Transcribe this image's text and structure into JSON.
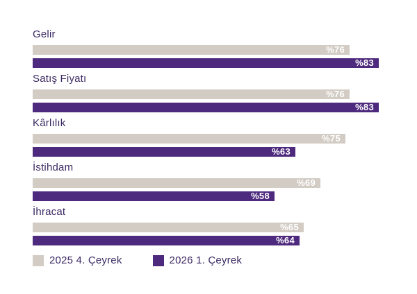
{
  "chart_data": {
    "type": "bar",
    "orientation": "horizontal",
    "title": "",
    "categories": [
      "Gelir",
      "Satış Fiyatı",
      "Kârlılık",
      "İstihdam",
      "İhracat"
    ],
    "series": [
      {
        "name": "2025 4. Çeyrek",
        "color": "#d2ccc4",
        "values": [
          76,
          76,
          75,
          69,
          65
        ]
      },
      {
        "name": "2026 1. Çeyrek",
        "color": "#4e2a7e",
        "values": [
          83,
          83,
          63,
          58,
          64
        ]
      }
    ],
    "value_prefix": "%",
    "value_labels_position": "inside-end",
    "xlim": [
      0,
      100
    ],
    "grid": false,
    "axes_visible": false,
    "legend_position": "bottom-left"
  },
  "colors": {
    "background": "#ffffff",
    "category_label_text": "#3b2a63",
    "value_label_text": "#ffffff",
    "series_2025_q4": "#d2ccc4",
    "series_2026_q1": "#4e2a7e"
  }
}
